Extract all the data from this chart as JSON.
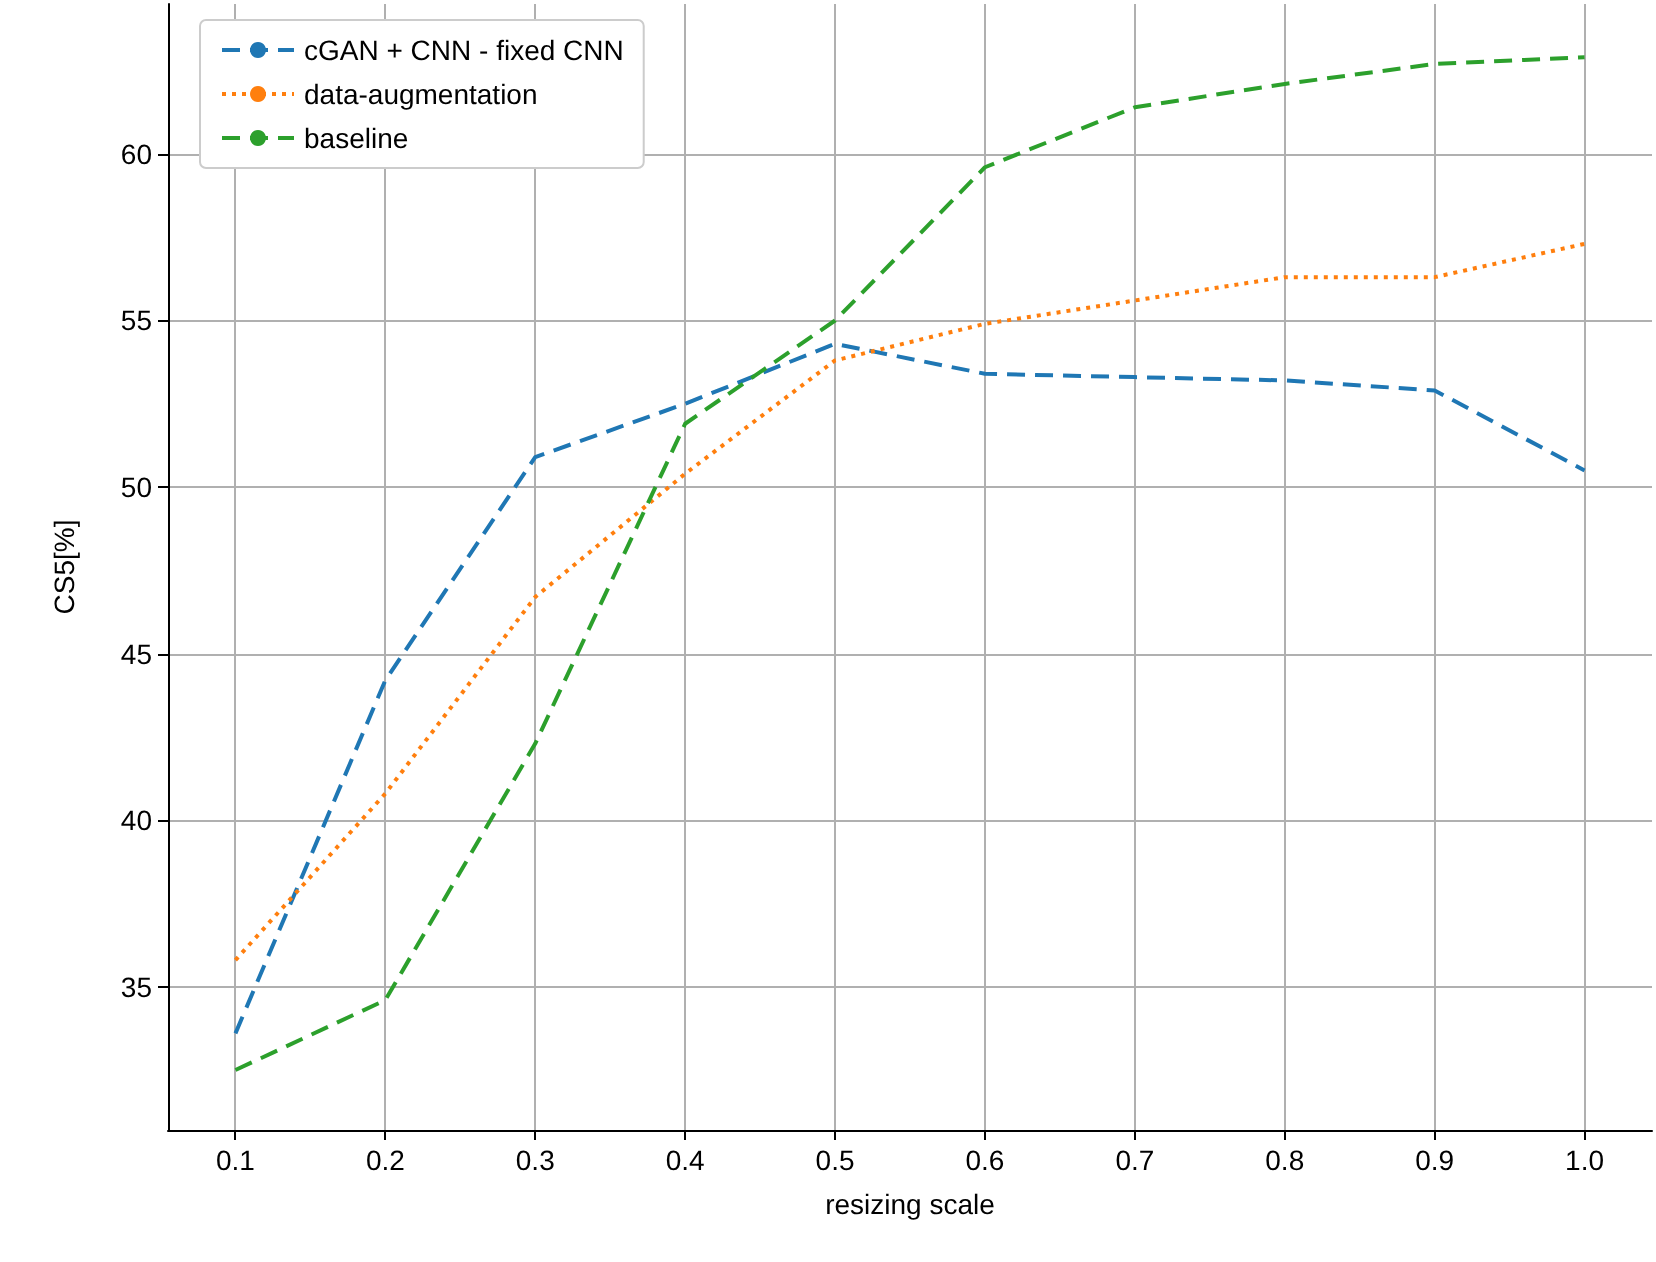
{
  "chart_data": {
    "type": "line",
    "xlabel": "resizing scale",
    "ylabel": "CS5[%]",
    "x": [
      0.1,
      0.2,
      0.3,
      0.4,
      0.5,
      0.6,
      0.7,
      0.8,
      0.9,
      1.0
    ],
    "series": [
      {
        "name": "cGAN + CNN - fixed CNN",
        "color": "#1f77b4",
        "line_style": "dashed",
        "values": [
          33.6,
          44.2,
          50.9,
          52.5,
          54.3,
          53.4,
          53.3,
          53.2,
          52.9,
          50.5
        ]
      },
      {
        "name": "data-augmentation",
        "color": "#ff7f0e",
        "line_style": "dotted",
        "values": [
          35.8,
          40.8,
          46.7,
          50.4,
          53.8,
          54.9,
          55.6,
          56.3,
          56.3,
          57.3
        ]
      },
      {
        "name": "baseline",
        "color": "#2ca02c",
        "line_style": "dashed",
        "values": [
          32.5,
          34.6,
          42.3,
          51.9,
          55.0,
          59.6,
          61.4,
          62.1,
          62.7,
          62.9
        ]
      }
    ],
    "xlim": [
      0.055,
      1.045
    ],
    "ylim": [
      30.7,
      64.5
    ],
    "xticks": [
      0.1,
      0.2,
      0.3,
      0.4,
      0.5,
      0.6,
      0.7,
      0.8,
      0.9,
      {
        "value": 1,
        "label": "1.0"
      }
    ],
    "yticks": [
      35,
      40,
      45,
      50,
      55,
      60
    ],
    "grid": true,
    "legend": "top left",
    "marker": "none"
  }
}
